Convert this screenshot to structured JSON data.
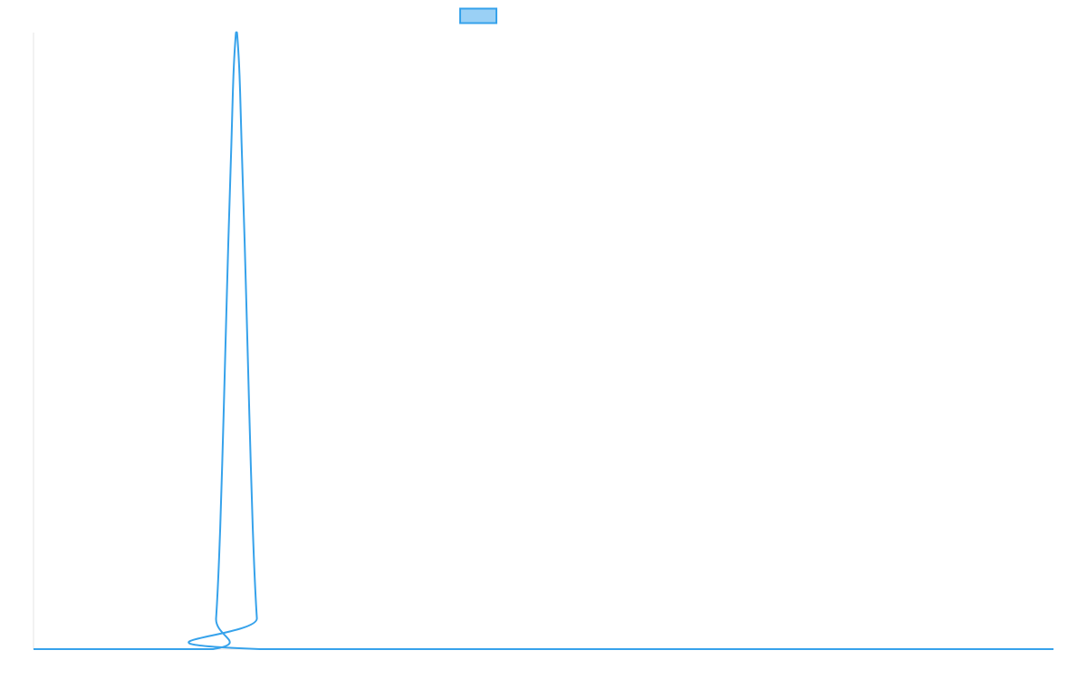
{
  "chart_data": {
    "type": "line",
    "title": "",
    "xlabel": "",
    "ylabel": "",
    "legend": {
      "position": "top-center",
      "entries": [
        {
          "name": "",
          "color": "#36a2eb",
          "fill": "#9ad0f5"
        }
      ]
    },
    "grid": false,
    "xlim": [
      0,
      100
    ],
    "ylim": [
      0,
      1
    ],
    "series": [
      {
        "name": "",
        "color": "#36a2eb",
        "points": [
          [
            0,
            0
          ],
          [
            17.6,
            0
          ],
          [
            17.9,
            0.05
          ],
          [
            18.2,
            0.15
          ],
          [
            18.5,
            0.3
          ],
          [
            18.8,
            0.48
          ],
          [
            19.1,
            0.66
          ],
          [
            19.4,
            0.82
          ],
          [
            19.6,
            0.93
          ],
          [
            19.8,
            0.99
          ],
          [
            19.9,
            1.0
          ],
          [
            20.0,
            0.99
          ],
          [
            20.2,
            0.93
          ],
          [
            20.4,
            0.82
          ],
          [
            20.7,
            0.66
          ],
          [
            21.0,
            0.48
          ],
          [
            21.3,
            0.3
          ],
          [
            21.6,
            0.15
          ],
          [
            21.9,
            0.05
          ],
          [
            22.2,
            0
          ],
          [
            100,
            0
          ]
        ]
      }
    ]
  }
}
